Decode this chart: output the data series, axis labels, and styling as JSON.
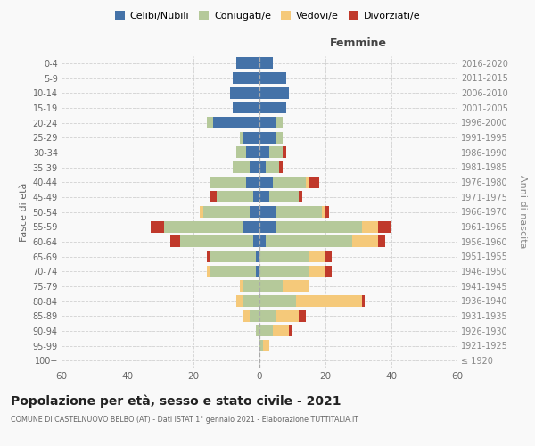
{
  "age_groups": [
    "100+",
    "95-99",
    "90-94",
    "85-89",
    "80-84",
    "75-79",
    "70-74",
    "65-69",
    "60-64",
    "55-59",
    "50-54",
    "45-49",
    "40-44",
    "35-39",
    "30-34",
    "25-29",
    "20-24",
    "15-19",
    "10-14",
    "5-9",
    "0-4"
  ],
  "birth_years": [
    "≤ 1920",
    "1921-1925",
    "1926-1930",
    "1931-1935",
    "1936-1940",
    "1941-1945",
    "1946-1950",
    "1951-1955",
    "1956-1960",
    "1961-1965",
    "1966-1970",
    "1971-1975",
    "1976-1980",
    "1981-1985",
    "1986-1990",
    "1991-1995",
    "1996-2000",
    "2001-2005",
    "2006-2010",
    "2011-2015",
    "2016-2020"
  ],
  "male": {
    "celibi": [
      0,
      0,
      0,
      0,
      0,
      0,
      1,
      1,
      2,
      5,
      3,
      2,
      4,
      3,
      4,
      5,
      14,
      8,
      9,
      8,
      7
    ],
    "coniugati": [
      0,
      0,
      1,
      3,
      5,
      5,
      14,
      14,
      22,
      24,
      14,
      11,
      11,
      5,
      3,
      1,
      2,
      0,
      0,
      0,
      0
    ],
    "vedovi": [
      0,
      0,
      0,
      2,
      2,
      1,
      1,
      0,
      0,
      0,
      1,
      0,
      0,
      0,
      0,
      0,
      0,
      0,
      0,
      0,
      0
    ],
    "divorziati": [
      0,
      0,
      0,
      0,
      0,
      0,
      0,
      1,
      3,
      4,
      0,
      2,
      0,
      0,
      0,
      0,
      0,
      0,
      0,
      0,
      0
    ]
  },
  "female": {
    "nubili": [
      0,
      0,
      0,
      0,
      0,
      0,
      0,
      0,
      2,
      5,
      5,
      3,
      4,
      2,
      3,
      5,
      5,
      8,
      9,
      8,
      4
    ],
    "coniugate": [
      0,
      1,
      4,
      5,
      11,
      7,
      15,
      15,
      26,
      26,
      14,
      9,
      10,
      4,
      4,
      2,
      2,
      0,
      0,
      0,
      0
    ],
    "vedove": [
      0,
      2,
      5,
      7,
      20,
      8,
      5,
      5,
      8,
      5,
      1,
      0,
      1,
      0,
      0,
      0,
      0,
      0,
      0,
      0,
      0
    ],
    "divorziate": [
      0,
      0,
      1,
      2,
      1,
      0,
      2,
      2,
      2,
      4,
      1,
      1,
      3,
      1,
      1,
      0,
      0,
      0,
      0,
      0,
      0
    ]
  },
  "colors": {
    "celibi": "#4472a8",
    "coniugati": "#b5c99a",
    "vedovi": "#f5c97a",
    "divorziati": "#c0392b"
  },
  "xlim": 60,
  "title": "Popolazione per età, sesso e stato civile - 2021",
  "subtitle": "COMUNE DI CASTELNUOVO BELBO (AT) - Dati ISTAT 1° gennaio 2021 - Elaborazione TUTTITALIA.IT",
  "xlabel_right": "Femmine",
  "ylabel_left": "Fasce di età",
  "ylabel_right": "Anni di nascita",
  "bg_color": "#f9f9f9",
  "grid_color": "#cccccc"
}
